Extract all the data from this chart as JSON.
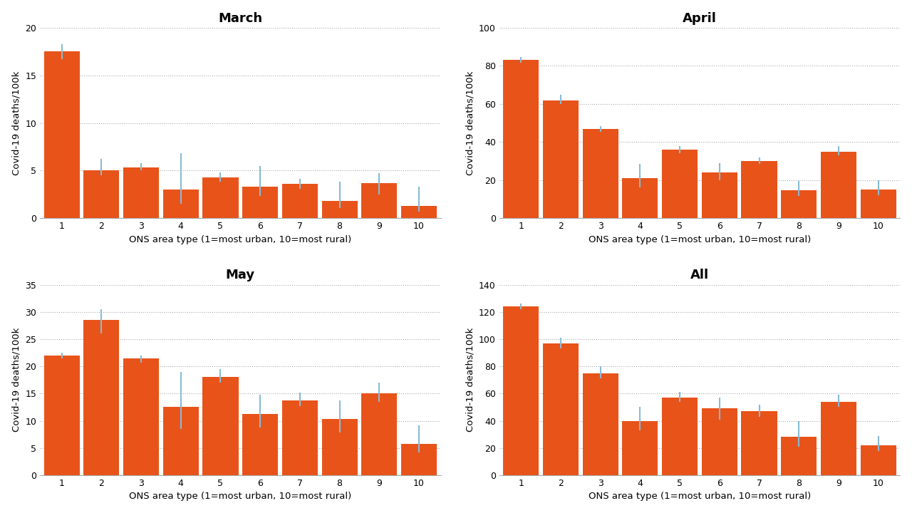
{
  "titles": [
    "March",
    "April",
    "May",
    "All"
  ],
  "xlabel": "ONS area type (1=most urban, 10=most rural)",
  "ylabel": "Covid-19 deaths/100k",
  "bar_color": "#E8531A",
  "error_color": "#88BBD6",
  "categories": [
    1,
    2,
    3,
    4,
    5,
    6,
    7,
    8,
    9,
    10
  ],
  "march": {
    "values": [
      17.5,
      5.0,
      5.3,
      3.0,
      4.3,
      3.3,
      3.6,
      1.8,
      3.7,
      1.3
    ],
    "err_low": [
      0.8,
      0.5,
      0.3,
      1.5,
      0.5,
      1.0,
      0.5,
      0.7,
      1.2,
      0.6
    ],
    "err_high": [
      0.8,
      1.2,
      0.5,
      3.8,
      0.5,
      2.2,
      0.5,
      2.0,
      1.0,
      2.0
    ],
    "ylim": [
      0,
      20
    ],
    "yticks": [
      0,
      5,
      10,
      15,
      20
    ]
  },
  "april": {
    "values": [
      83.0,
      62.0,
      47.0,
      21.0,
      36.0,
      24.0,
      30.0,
      14.5,
      35.0,
      15.0
    ],
    "err_low": [
      1.5,
      2.0,
      1.5,
      5.0,
      2.0,
      4.0,
      1.5,
      3.0,
      2.0,
      3.0
    ],
    "err_high": [
      1.5,
      3.0,
      1.5,
      7.5,
      2.0,
      5.0,
      2.0,
      5.0,
      3.0,
      5.0
    ],
    "ylim": [
      0,
      100
    ],
    "yticks": [
      0,
      20,
      40,
      60,
      80,
      100
    ]
  },
  "may": {
    "values": [
      22.0,
      28.5,
      21.5,
      12.5,
      18.0,
      11.3,
      13.7,
      10.3,
      15.0,
      5.7
    ],
    "err_low": [
      0.5,
      2.5,
      0.8,
      4.0,
      1.0,
      2.5,
      1.0,
      2.5,
      1.5,
      1.5
    ],
    "err_high": [
      0.5,
      2.0,
      0.5,
      6.5,
      1.5,
      3.5,
      1.5,
      3.5,
      2.0,
      3.5
    ],
    "ylim": [
      0,
      35
    ],
    "yticks": [
      0,
      5,
      10,
      15,
      20,
      25,
      30,
      35
    ]
  },
  "all": {
    "values": [
      124.0,
      97.0,
      75.0,
      40.0,
      57.0,
      49.0,
      47.0,
      28.0,
      54.0,
      22.0
    ],
    "err_low": [
      2.0,
      4.0,
      4.0,
      7.0,
      3.0,
      8.0,
      4.0,
      7.0,
      4.0,
      4.0
    ],
    "err_high": [
      2.0,
      4.0,
      5.0,
      10.0,
      4.0,
      8.0,
      5.0,
      12.0,
      5.0,
      7.0
    ],
    "ylim": [
      0,
      140
    ],
    "yticks": [
      0,
      20,
      40,
      60,
      80,
      100,
      120,
      140
    ]
  }
}
